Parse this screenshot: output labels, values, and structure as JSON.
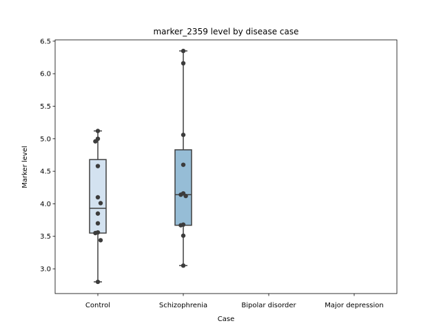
{
  "chart_data": {
    "type": "box",
    "title": "marker_2359 level by disease case",
    "xlabel": "Case",
    "ylabel": "Marker level",
    "ylim": [
      2.62,
      6.52
    ],
    "y_ticks": [
      3.0,
      3.5,
      4.0,
      4.5,
      5.0,
      5.5,
      6.0,
      6.5
    ],
    "y_tick_labels": [
      "3.0",
      "3.5",
      "4.0",
      "4.5",
      "5.0",
      "5.5",
      "6.0",
      "6.5"
    ],
    "categories": [
      "Control",
      "Schizophrenia",
      "Bipolar disorder",
      "Major depression"
    ],
    "grid": false,
    "series": [
      {
        "category": "Control",
        "color": "#d3e2f0",
        "box": {
          "whisker_low": 2.8,
          "q1": 3.55,
          "median": 3.93,
          "q3": 4.68,
          "whisker_high": 5.12
        },
        "points": [
          5.12,
          5.0,
          4.96,
          4.58,
          4.1,
          4.01,
          3.85,
          3.7,
          3.56,
          3.55,
          3.44,
          2.8
        ]
      },
      {
        "category": "Schizophrenia",
        "color": "#96bdd6",
        "box": {
          "whisker_low": 3.05,
          "q1": 3.67,
          "median": 4.14,
          "q3": 4.83,
          "whisker_high": 6.35
        },
        "points": [
          6.35,
          6.16,
          5.06,
          4.6,
          4.16,
          4.14,
          4.12,
          3.68,
          3.67,
          3.51,
          3.05
        ]
      },
      {
        "category": "Bipolar disorder",
        "color": "#5b93c2",
        "box": null,
        "points": []
      },
      {
        "category": "Major depression",
        "color": "#2f6aa8",
        "box": null,
        "points": []
      }
    ]
  }
}
